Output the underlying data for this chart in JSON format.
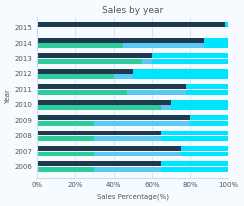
{
  "title": "Sales by year",
  "xlabel": "Sales Percentage(%)",
  "ylabel": "Year",
  "years": [
    2006,
    2007,
    2008,
    2009,
    2010,
    2011,
    2012,
    2013,
    2014,
    2015
  ],
  "top_green": [
    0,
    0,
    0,
    0,
    0,
    0,
    0,
    0,
    0,
    0
  ],
  "top_dark": [
    100,
    100,
    100,
    100,
    100,
    100,
    100,
    100,
    100,
    100
  ],
  "top_dark_end": [
    65,
    75,
    65,
    80,
    70,
    78,
    50,
    60,
    87,
    98
  ],
  "bot_green": [
    30,
    30,
    30,
    30,
    65,
    47,
    40,
    55,
    45,
    0
  ],
  "bot_blue": [
    35,
    45,
    35,
    50,
    5,
    31,
    10,
    5,
    42,
    0
  ],
  "bot_cyan": [
    35,
    25,
    35,
    20,
    30,
    22,
    50,
    40,
    13,
    0
  ],
  "dark_color": "#1e3a4f",
  "green_color": "#2ecc9a",
  "blue_color": "#5bc8f5",
  "cyan_color": "#00e5ff",
  "white_color": "#f0f8ff",
  "bar_height": 0.32,
  "bar_gap": 0.36,
  "background_color": "#f5fbff",
  "grid_color": "#ccddee",
  "title_color": "#555555",
  "label_color": "#555555",
  "tick_color": "#555555",
  "xlim": [
    0,
    100
  ],
  "xticks": [
    0,
    20,
    40,
    60,
    80,
    100
  ],
  "xtick_labels": [
    "0%",
    "20%",
    "40%",
    "60%",
    "80%",
    "100%"
  ]
}
